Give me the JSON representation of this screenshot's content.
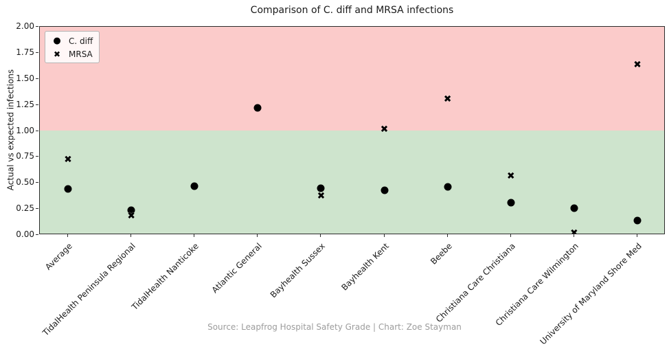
{
  "chart_data": {
    "type": "scatter",
    "title": "Comparison of C. diff and MRSA infections",
    "ylabel": "Actual vs expected infections",
    "xlabel": "",
    "source": "Source: Leapfrog Hospital Safety Grade | Chart: Zoe Stayman",
    "ylim": [
      0.0,
      2.0
    ],
    "ytick_step": 0.25,
    "grid": false,
    "legend_position": "upper-left",
    "threshold": 1.0,
    "colors": {
      "above_band": "#fbcbca",
      "below_band": "#cee4cd",
      "marker": "#000000"
    },
    "categories": [
      "Average",
      "TidalHealth Peninsula Regional",
      "TidalHealth Nanticoke",
      "Atlantic General",
      "Bayhealth Sussex",
      "Bayhealth Kent",
      "Beebe",
      "Christiana Care Christiana",
      "Christiana Care Wilmington",
      "University of Maryland Shore Med"
    ],
    "series": [
      {
        "name": "C. diff",
        "marker": "circle",
        "glyph": "●",
        "values": [
          0.44,
          0.24,
          0.47,
          1.22,
          0.45,
          0.43,
          0.46,
          0.31,
          0.26,
          0.14
        ]
      },
      {
        "name": "MRSA",
        "marker": "x",
        "glyph": "✖",
        "values": [
          0.72,
          0.18,
          null,
          null,
          0.37,
          1.01,
          1.3,
          0.56,
          0.01,
          1.63
        ]
      }
    ]
  }
}
